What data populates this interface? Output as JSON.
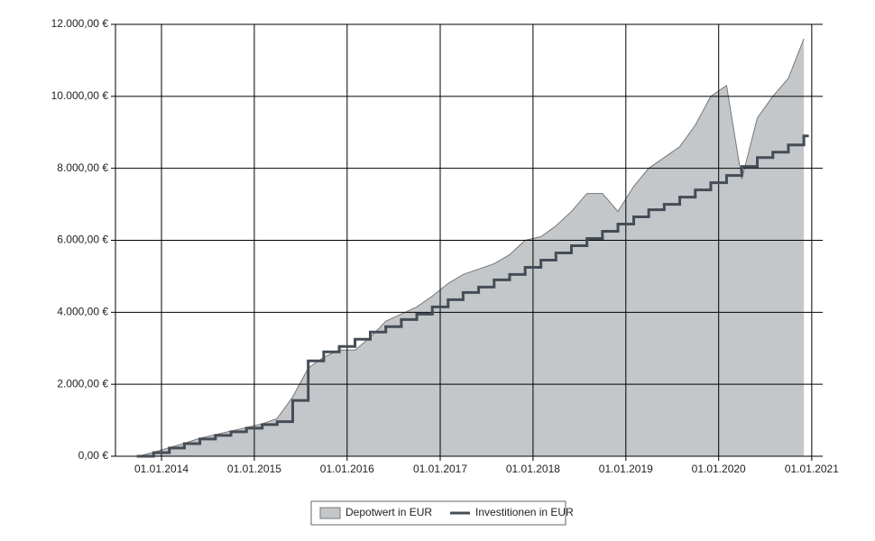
{
  "chart_data": {
    "type": "line",
    "x": [
      "2013-10-01",
      "2013-12-01",
      "2014-02-01",
      "2014-04-01",
      "2014-06-01",
      "2014-08-01",
      "2014-10-01",
      "2014-12-01",
      "2015-02-01",
      "2015-04-01",
      "2015-06-01",
      "2015-08-01",
      "2015-10-01",
      "2015-12-01",
      "2016-02-01",
      "2016-04-01",
      "2016-06-01",
      "2016-08-01",
      "2016-10-01",
      "2016-12-01",
      "2017-02-01",
      "2017-04-01",
      "2017-06-01",
      "2017-08-01",
      "2017-10-01",
      "2017-12-01",
      "2018-02-01",
      "2018-04-01",
      "2018-06-01",
      "2018-08-01",
      "2018-10-01",
      "2018-12-01",
      "2019-02-01",
      "2019-04-01",
      "2019-06-01",
      "2019-08-01",
      "2019-10-01",
      "2019-12-01",
      "2020-02-01",
      "2020-04-01",
      "2020-06-01",
      "2020-08-01",
      "2020-10-01",
      "2020-12-01"
    ],
    "series": [
      {
        "name": "Depotwert in EUR",
        "kind": "area",
        "color": "#c4c7ca",
        "values": [
          0,
          110,
          240,
          360,
          500,
          600,
          700,
          800,
          900,
          1050,
          1650,
          2450,
          2750,
          2950,
          2950,
          3300,
          3750,
          3950,
          4150,
          4450,
          4800,
          5050,
          5200,
          5350,
          5600,
          6000,
          6100,
          6400,
          6800,
          7300,
          7300,
          6800,
          7500,
          8000,
          8300,
          8600,
          9200,
          10000,
          10300,
          7700,
          9400,
          10000,
          10500,
          11600
        ]
      },
      {
        "name": "Investitionen in EUR",
        "kind": "step",
        "color": "#454d57",
        "values": [
          0,
          100,
          230,
          350,
          480,
          580,
          680,
          780,
          880,
          960,
          1550,
          2650,
          2900,
          3050,
          3250,
          3450,
          3600,
          3800,
          3950,
          4150,
          4350,
          4550,
          4700,
          4900,
          5050,
          5250,
          5450,
          5650,
          5850,
          6050,
          6250,
          6450,
          6650,
          6850,
          7000,
          7200,
          7400,
          7600,
          7800,
          8050,
          8300,
          8450,
          8650,
          8900
        ]
      }
    ],
    "xlim": [
      "2013-07-04",
      "2021-02-13"
    ],
    "xticks": [
      {
        "value": "2014-01-01",
        "label": "01.01.2014"
      },
      {
        "value": "2015-01-01",
        "label": "01.01.2015"
      },
      {
        "value": "2016-01-01",
        "label": "01.01.2016"
      },
      {
        "value": "2017-01-01",
        "label": "01.01.2017"
      },
      {
        "value": "2018-01-01",
        "label": "01.01.2018"
      },
      {
        "value": "2019-01-01",
        "label": "01.01.2019"
      },
      {
        "value": "2020-01-01",
        "label": "01.01.2020"
      },
      {
        "value": "2021-01-01",
        "label": "01.01.2021"
      }
    ],
    "ylim": [
      0,
      12000
    ],
    "yticks": [
      {
        "value": 0,
        "label": "0,00 €"
      },
      {
        "value": 2000,
        "label": "2.000,00 €"
      },
      {
        "value": 4000,
        "label": "4.000,00 €"
      },
      {
        "value": 6000,
        "label": "6.000,00 €"
      },
      {
        "value": 8000,
        "label": "8.000,00 €"
      },
      {
        "value": 10000,
        "label": "10.000,00 €"
      },
      {
        "value": 12000,
        "label": "12.000,00 €"
      }
    ],
    "grid": true,
    "legend": "bottom"
  }
}
